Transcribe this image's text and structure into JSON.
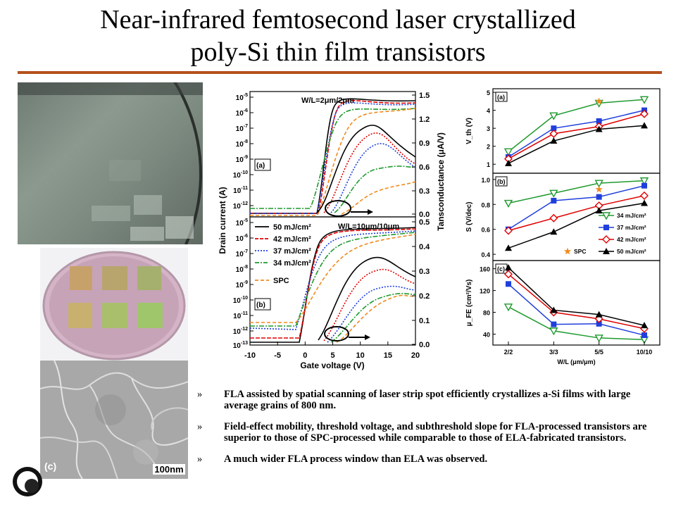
{
  "slide": {
    "title_line1": "Near-infrared femtosecond laser crystallized",
    "title_line2": "poly-Si thin film transistors"
  },
  "photos": {
    "micrograph_label": "(c)",
    "scale_bar": "100nm"
  },
  "colors": {
    "rule": "#b5501b",
    "black": "#000000",
    "red": "#e00000",
    "blue": "#1f3fdc",
    "green": "#1f9a2e",
    "orange": "#f08a1c"
  },
  "bullets": [
    {
      "mark": "»",
      "text": "FLA assisted by spatial scanning of laser strip spot efficiently crystallizes a-Si films with large average grains of 800 nm."
    },
    {
      "mark": "»",
      "text": "Field-effect mobility, threshold voltage, and subthreshold slope for FLA-processed transistors are superior to those of SPC-processed while comparable to those of ELA-fabricated transistors."
    },
    {
      "mark": "»",
      "text": "A much wider FLA process window than ELA was observed."
    }
  ],
  "chart_data": [
    {
      "type": "line",
      "panel": "(a)",
      "annotation": "W/L=2μm/2μm",
      "xlabel": "Gate voltage (V)",
      "ylabel_left": "Drain current (A)",
      "ylabel_right": "Tansconductance (μA/V)",
      "x_ticks": [
        "-10",
        "-5",
        "0",
        "5",
        "10",
        "15",
        "20"
      ],
      "y_left_ticks": [
        "10^-5",
        "10^-6",
        "10^-7",
        "10^-8",
        "10^-9",
        "10^-10",
        "10^-11",
        "10^-12"
      ],
      "y_right_ticks": [
        "1.5",
        "1.2",
        "0.9",
        "0.6",
        "0.3",
        "0.0"
      ],
      "series_note": "five conditions: 50, 42, 37, 34 mJ/cm² and SPC"
    },
    {
      "type": "line",
      "panel": "(b)",
      "annotation": "W/L=10μm/10μm",
      "xlabel": "Gate voltage (V)",
      "x_ticks": [
        "-10",
        "-5",
        "0",
        "5",
        "10",
        "15",
        "20"
      ],
      "y_left_ticks": [
        "10^-5",
        "10^-6",
        "10^-7",
        "10^-8",
        "10^-9",
        "10^-10",
        "10^-11",
        "10^-12",
        "10^-13"
      ],
      "y_right_ticks": [
        "0.5",
        "0.4",
        "0.3",
        "0.2",
        "0.1",
        "0.0"
      ],
      "legend": [
        "50 mJ/cm²",
        "42 mJ/cm²",
        "37 mJ/cm²",
        "34 mJ/cm²",
        "SPC"
      ]
    },
    {
      "type": "line",
      "categories": [
        "2/2",
        "3/3",
        "5/5",
        "10/10"
      ],
      "xlabel": "W/L (μm/μm)",
      "legend": [
        "34 mJ/cm²",
        "37 mJ/cm²",
        "42 mJ/cm²",
        "SPC",
        "50 mJ/cm²"
      ],
      "panels": [
        {
          "label": "(a)",
          "ylabel": "V_th (V)",
          "ylim": [
            0.5,
            5.2
          ],
          "y_ticks": [
            "5",
            "4",
            "3",
            "2",
            "1"
          ],
          "series": [
            {
              "name": "34 mJ/cm²",
              "values": [
                1.7,
                3.7,
                4.4,
                4.6
              ]
            },
            {
              "name": "37 mJ/cm²",
              "values": [
                1.4,
                3.0,
                3.4,
                4.0
              ]
            },
            {
              "name": "42 mJ/cm²",
              "values": [
                1.3,
                2.7,
                3.1,
                3.8
              ]
            },
            {
              "name": "50 mJ/cm²",
              "values": [
                1.05,
                2.3,
                2.95,
                3.15
              ]
            },
            {
              "name": "SPC",
              "values": [
                null,
                null,
                4.5,
                null
              ]
            }
          ]
        },
        {
          "label": "(b)",
          "ylabel": "S (V/dec)",
          "ylim": [
            0.35,
            1.05
          ],
          "y_ticks": [
            "1.0",
            "0.8",
            "0.6",
            "0.4"
          ],
          "series": [
            {
              "name": "34 mJ/cm²",
              "values": [
                0.81,
                0.89,
                0.97,
                0.99
              ]
            },
            {
              "name": "37 mJ/cm²",
              "values": [
                0.6,
                0.83,
                0.86,
                0.95
              ]
            },
            {
              "name": "42 mJ/cm²",
              "values": [
                0.59,
                0.69,
                0.79,
                0.87
              ]
            },
            {
              "name": "50 mJ/cm²",
              "values": [
                0.45,
                0.58,
                0.75,
                0.81
              ]
            },
            {
              "name": "SPC",
              "values": [
                null,
                null,
                0.92,
                null
              ]
            }
          ]
        },
        {
          "label": "(c)",
          "ylabel": "μ_FE (cm²/Vs)",
          "ylim": [
            20,
            175
          ],
          "y_ticks": [
            "160",
            "120",
            "80",
            "40"
          ],
          "series": [
            {
              "name": "34 mJ/cm²",
              "values": [
                90,
                46,
                33,
                30
              ]
            },
            {
              "name": "37 mJ/cm²",
              "values": [
                132,
                58,
                59,
                38
              ]
            },
            {
              "name": "42 mJ/cm²",
              "values": [
                150,
                80,
                68,
                50
              ]
            },
            {
              "name": "50 mJ/cm²",
              "values": [
                162,
                84,
                76,
                56
              ]
            }
          ]
        }
      ]
    }
  ]
}
